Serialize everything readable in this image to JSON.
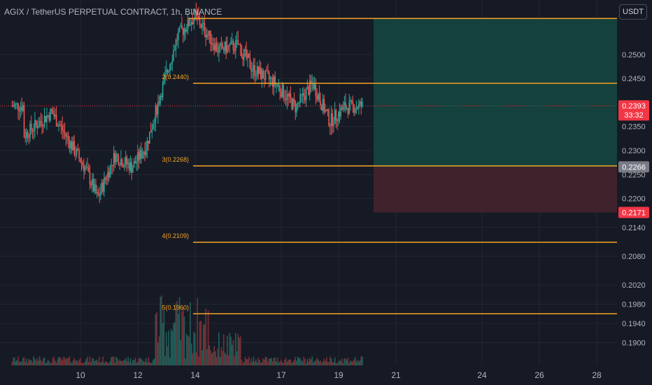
{
  "title": "AGIX / TetherUS PERPETUAL CONTRACT, 1h, BINANCE",
  "currency_button": "USDT",
  "colors": {
    "background": "#161a25",
    "grid": "#232733",
    "up": "#26a69a",
    "down": "#ef5350",
    "level_line": "#f7a325",
    "profit_zone": "#14413d",
    "loss_zone": "#40222c",
    "axis_text": "#b2b5be",
    "price_tag": "#f23645",
    "entry_tag": "#787b86"
  },
  "chart_data": {
    "type": "candlestick",
    "x_tick_labels": [
      "10",
      "12",
      "14",
      "17",
      "19",
      "21",
      "24",
      "26",
      "28"
    ],
    "y_tick_labels": [
      "0.2500",
      "0.2450",
      "0.2350",
      "0.2300",
      "0.2250",
      "0.2200",
      "0.2140",
      "0.2080",
      "0.2020",
      "0.1980",
      "0.1940",
      "0.1900"
    ],
    "levels": [
      {
        "label": "2(0.2440)",
        "value": 0.244
      },
      {
        "label": "3(0.2268)",
        "value": 0.2268
      },
      {
        "label": "4(0.2109)",
        "value": 0.2109
      },
      {
        "label": "5(0.1960)",
        "value": 0.196
      }
    ],
    "top_level_value": 0.2575,
    "current_price": {
      "value": "0.2393",
      "countdown": "33:32"
    },
    "position": {
      "entry": "0.2266",
      "stop": "0.2171",
      "target": 0.2575
    },
    "series_outline": [
      {
        "x": "8",
        "close": 0.233
      },
      {
        "x": "9",
        "close": 0.238
      },
      {
        "x": "9.5",
        "close": 0.233
      },
      {
        "x": "10.2",
        "close": 0.226
      },
      {
        "x": "10.6",
        "close": 0.22
      },
      {
        "x": "11.2",
        "close": 0.229
      },
      {
        "x": "11.8",
        "close": 0.2265
      },
      {
        "x": "12.3",
        "close": 0.231
      },
      {
        "x": "12.8",
        "close": 0.242
      },
      {
        "x": "13.4",
        "close": 0.254
      },
      {
        "x": "14",
        "close": 0.258
      },
      {
        "x": "14.8",
        "close": 0.251
      },
      {
        "x": "15.5",
        "close": 0.252
      },
      {
        "x": "16",
        "close": 0.247
      },
      {
        "x": "16.8",
        "close": 0.244
      },
      {
        "x": "17.5",
        "close": 0.239
      },
      {
        "x": "18.1",
        "close": 0.244
      },
      {
        "x": "18.7",
        "close": 0.236
      },
      {
        "x": "19.2",
        "close": 0.239
      },
      {
        "x": "19.8",
        "close": 0.2393
      }
    ]
  }
}
